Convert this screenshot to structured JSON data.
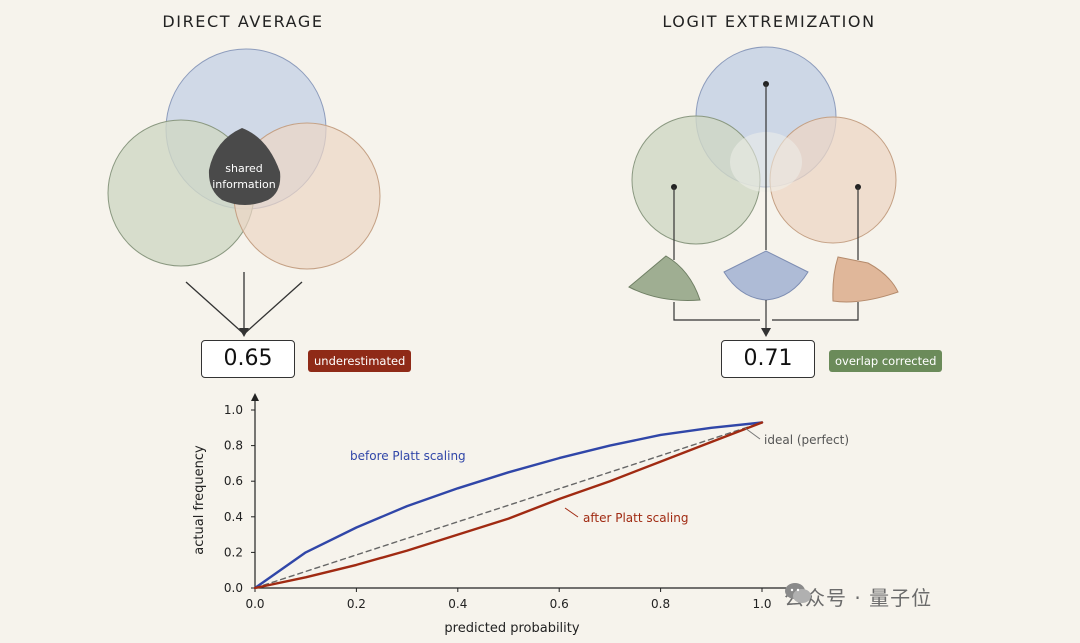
{
  "left_panel": {
    "title": "DIRECT AVERAGE",
    "overlap_label_line1": "shared",
    "overlap_label_line2": "information",
    "value": "0.65",
    "tag": "underestimated"
  },
  "right_panel": {
    "title": "LOGIT EXTREMIZATION",
    "value": "0.71",
    "tag": "overlap corrected"
  },
  "colors": {
    "blue_circle": "#c9d4e6",
    "green_circle": "#cfd7c4",
    "orange_circle": "#ecd6c4",
    "shared": "#4a4a4a",
    "underestimated_tag": "#8f2a17",
    "overlap_tag": "#6b8b5a",
    "before_curve": "#3046a8",
    "after_curve": "#a02a12",
    "ideal_line": "#666666"
  },
  "chart_data": {
    "type": "line",
    "xlabel": "predicted probability",
    "ylabel": "actual frequency",
    "xlim": [
      0,
      1.0
    ],
    "ylim": [
      0,
      1.0
    ],
    "x_ticks": [
      "0.0",
      "0.2",
      "0.4",
      "0.6",
      "0.8",
      "1.0"
    ],
    "y_ticks": [
      "0.0",
      "0.2",
      "0.4",
      "0.6",
      "0.8",
      "1.0"
    ],
    "grid": false,
    "series": [
      {
        "name": "before Platt scaling",
        "x": [
          0.0,
          0.1,
          0.2,
          0.3,
          0.4,
          0.5,
          0.6,
          0.7,
          0.8,
          0.9,
          1.0
        ],
        "y": [
          0.0,
          0.2,
          0.34,
          0.46,
          0.56,
          0.65,
          0.73,
          0.8,
          0.86,
          0.9,
          0.93
        ]
      },
      {
        "name": "ideal (perfect)",
        "x": [
          0.0,
          1.0
        ],
        "y": [
          0.0,
          0.93
        ]
      },
      {
        "name": "after Platt scaling",
        "x": [
          0.0,
          0.1,
          0.2,
          0.3,
          0.4,
          0.5,
          0.6,
          0.7,
          0.8,
          0.9,
          1.0
        ],
        "y": [
          0.0,
          0.06,
          0.13,
          0.21,
          0.3,
          0.39,
          0.5,
          0.6,
          0.71,
          0.82,
          0.93
        ]
      }
    ]
  },
  "watermark": {
    "text": "公众号 · 量子位"
  }
}
